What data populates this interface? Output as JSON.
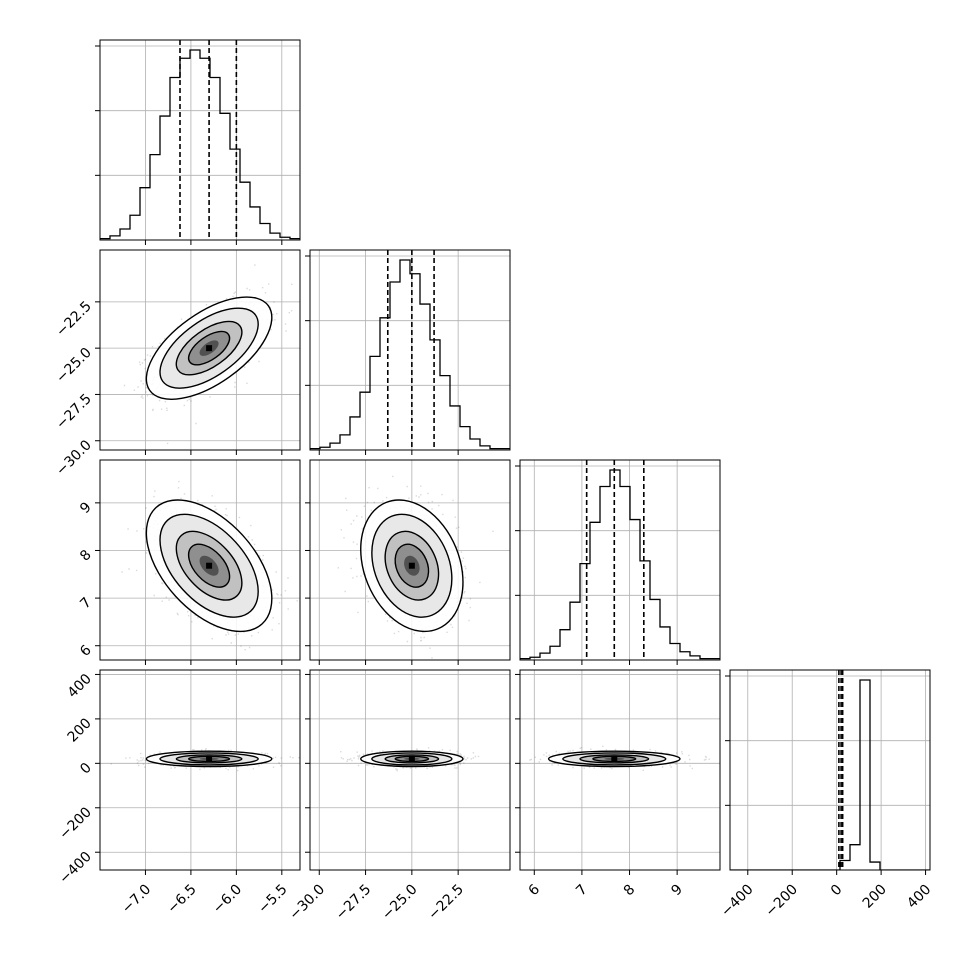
{
  "chart_data": {
    "type": "corner",
    "grid": true,
    "parameters": [
      {
        "range": [
          -7.5,
          -5.3
        ],
        "ticks": [
          -7.0,
          -6.5,
          -6.0,
          -5.5
        ],
        "tick_labels": [
          "−7.0",
          "−6.5",
          "−6.0",
          "−5.5"
        ],
        "quantiles": [
          -6.62,
          -6.3,
          -6.0
        ],
        "mean": -6.3,
        "sd": 0.3
      },
      {
        "range": [
          -30.5,
          -19.7
        ],
        "ticks": [
          -30.0,
          -27.5,
          -25.0,
          -22.5
        ],
        "tick_labels": [
          "−30.0",
          "−27.5",
          "−25.0",
          "−22.5"
        ],
        "quantiles": [
          -26.3,
          -25.0,
          -23.8
        ],
        "mean": -25.0,
        "sd": 1.2
      },
      {
        "range": [
          5.7,
          9.9
        ],
        "ticks": [
          6,
          7,
          8,
          9
        ],
        "tick_labels": [
          "6",
          "7",
          "8",
          "9"
        ],
        "quantiles": [
          7.1,
          7.68,
          8.3
        ],
        "mean": 7.68,
        "sd": 0.6
      },
      {
        "range": [
          -480,
          420
        ],
        "ticks": [
          -400,
          -200,
          0,
          200,
          400
        ],
        "tick_labels": [
          "−400",
          "−200",
          "0",
          "200",
          "400"
        ],
        "quantiles": [
          10,
          20,
          27
        ],
        "mean": 20,
        "sd": 15
      }
    ],
    "histograms": [
      [
        1,
        3,
        8,
        18,
        38,
        62,
        90,
        118,
        132,
        138,
        132,
        118,
        92,
        66,
        42,
        24,
        12,
        5,
        2,
        1
      ],
      [
        1,
        2,
        5,
        11,
        24,
        42,
        68,
        96,
        122,
        138,
        128,
        106,
        80,
        54,
        32,
        17,
        8,
        3,
        1,
        1
      ],
      [
        1,
        2,
        5,
        10,
        22,
        42,
        70,
        100,
        126,
        138,
        126,
        102,
        72,
        44,
        24,
        12,
        6,
        3,
        1,
        1
      ],
      [
        0,
        0,
        0,
        0,
        0,
        0,
        0,
        0,
        0,
        0,
        0,
        6,
        16,
        120,
        5,
        0,
        0,
        0,
        0,
        0
      ]
    ],
    "correlations": [
      [
        1.0,
        0.6,
        -0.5,
        0.0
      ],
      [
        0.6,
        1.0,
        -0.25,
        0.0
      ],
      [
        -0.5,
        -0.25,
        1.0,
        0.0
      ],
      [
        0.0,
        0.0,
        0.0,
        1.0
      ]
    ]
  }
}
